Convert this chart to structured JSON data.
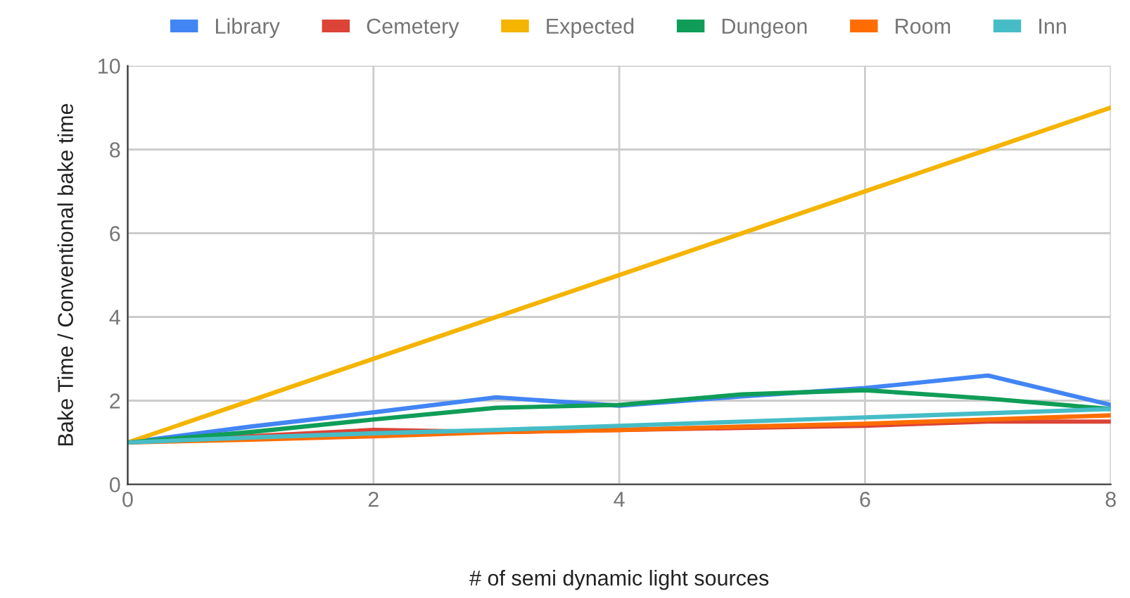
{
  "chart_data": {
    "type": "line",
    "xlabel": "# of semi dynamic light sources",
    "ylabel": "Bake Time / Conventional bake time",
    "x": [
      0,
      1,
      2,
      3,
      4,
      5,
      6,
      7,
      8
    ],
    "series": [
      {
        "name": "Library",
        "color": "#4285f4",
        "values": [
          1,
          1.38,
          1.72,
          2.08,
          1.88,
          2.1,
          2.3,
          2.6,
          1.9
        ]
      },
      {
        "name": "Cemetery",
        "color": "#db4437",
        "values": [
          1,
          1.15,
          1.3,
          1.25,
          1.3,
          1.35,
          1.4,
          1.5,
          1.5
        ]
      },
      {
        "name": "Expected",
        "color": "#f4b400",
        "values": [
          1,
          2,
          3,
          4,
          5,
          6,
          7,
          8,
          9
        ]
      },
      {
        "name": "Dungeon",
        "color": "#0f9d58",
        "values": [
          1,
          1.25,
          1.55,
          1.83,
          1.9,
          2.15,
          2.25,
          2.05,
          1.8
        ]
      },
      {
        "name": "Room",
        "color": "#ff6d00",
        "values": [
          1,
          1.07,
          1.15,
          1.25,
          1.3,
          1.38,
          1.45,
          1.55,
          1.65
        ]
      },
      {
        "name": "Inn",
        "color": "#46bdc6",
        "values": [
          1,
          1.12,
          1.22,
          1.3,
          1.4,
          1.5,
          1.6,
          1.7,
          1.8
        ]
      }
    ],
    "xlim": [
      0,
      8
    ],
    "xticks": [
      0,
      2,
      4,
      6,
      8
    ],
    "ylim": [
      0,
      10
    ],
    "yticks": [
      0,
      2,
      4,
      6,
      8,
      10
    ],
    "grid": true,
    "legend": "top",
    "marker": "none",
    "line_style": "solid"
  }
}
